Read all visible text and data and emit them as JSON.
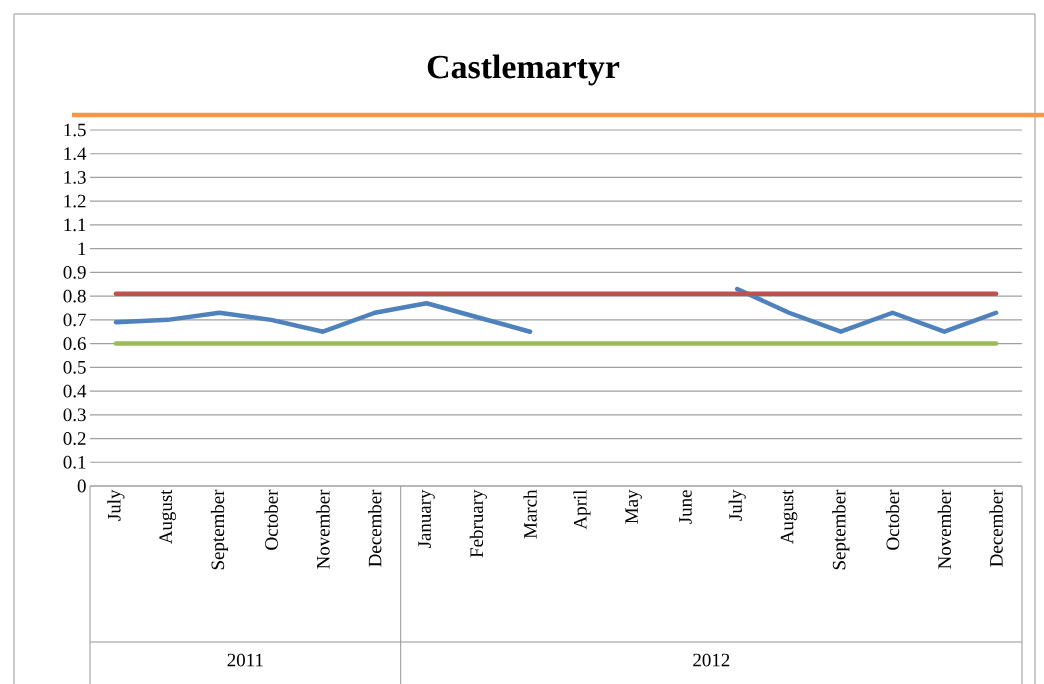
{
  "chart_data": {
    "type": "line",
    "title": "Castlemartyr",
    "categories": [
      "July",
      "August",
      "September",
      "October",
      "November",
      "December",
      "January",
      "February",
      "March",
      "April",
      "May",
      "June",
      "July",
      "August",
      "September",
      "October",
      "November",
      "December"
    ],
    "series": [
      {
        "color": "#4f81bd",
        "values": [
          0.69,
          0.7,
          0.73,
          0.7,
          0.65,
          0.73,
          0.77,
          0.71,
          0.65,
          null,
          null,
          null,
          0.83,
          0.73,
          0.65,
          0.73,
          0.65,
          0.73
        ]
      },
      {
        "color": "#c0504d",
        "values": [
          0.81,
          0.81,
          0.81,
          0.81,
          0.81,
          0.81,
          0.81,
          0.81,
          0.81,
          0.81,
          0.81,
          0.81,
          0.81,
          0.81,
          0.81,
          0.81,
          0.81,
          0.81
        ]
      },
      {
        "color": "#9bbb59",
        "values": [
          0.6,
          0.6,
          0.6,
          0.6,
          0.6,
          0.6,
          0.6,
          0.6,
          0.6,
          0.6,
          0.6,
          0.6,
          0.6,
          0.6,
          0.6,
          0.6,
          0.6,
          0.6
        ]
      }
    ],
    "annotations": [
      "2011",
      "2012"
    ],
    "ylim": [
      0,
      1.5
    ],
    "yticks": [
      0,
      0.1,
      0.2,
      0.3,
      0.4,
      0.5,
      0.6,
      0.7,
      0.8,
      0.9,
      1,
      1.1,
      1.2,
      1.3,
      1.4,
      1.5
    ],
    "grid": "y",
    "marker": "none",
    "line_style": "solid"
  }
}
